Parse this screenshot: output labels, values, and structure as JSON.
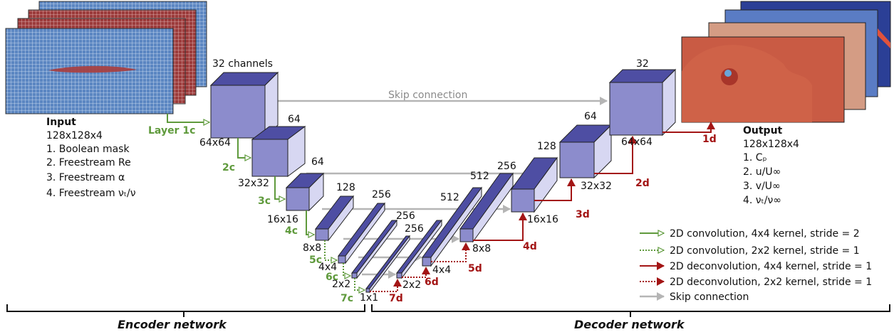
{
  "input": {
    "title": "Input",
    "size": "128x128x4",
    "items": [
      "1. Boolean mask",
      "2. Freestream Re",
      "3. Freestream α",
      "4. Freestream νₜ/ν"
    ]
  },
  "output": {
    "title": "Output",
    "size": "128x128x4",
    "items": [
      "1. Cₚ",
      "2. u/U∞",
      "3. v/U∞",
      "4. νₜ/ν∞"
    ]
  },
  "encoder": {
    "channels_label": "32 channels",
    "channels": [
      "64",
      "64",
      "128",
      "256",
      "256",
      "256"
    ],
    "sizes": [
      "64x64",
      "32x32",
      "16x16",
      "8x8",
      "4x4",
      "2x2",
      "1x1"
    ],
    "layers": [
      "Layer 1c",
      "2c",
      "3c",
      "4c",
      "5c",
      "6c",
      "7c"
    ]
  },
  "decoder": {
    "channels": [
      "512",
      "512",
      "256",
      "128",
      "64",
      "32"
    ],
    "sizes": [
      "2x2",
      "4x4",
      "8x8",
      "16x16",
      "32x32",
      "64x64"
    ],
    "layers": [
      "7d",
      "6d",
      "5d",
      "4d",
      "3d",
      "2d",
      "1d"
    ]
  },
  "skip_label": "Skip connection",
  "legend": [
    {
      "label": "2D convolution, 4x4 kernel, stride = 2",
      "color": "#5f9a3c",
      "style": "solid"
    },
    {
      "label": "2D convolution, 2x2 kernel, stride = 1",
      "color": "#5f9a3c",
      "style": "dotted"
    },
    {
      "label": "2D deconvolution, 4x4 kernel, stride = 1",
      "color": "#a31515",
      "style": "solid"
    },
    {
      "label": "2D deconvolution, 2x2 kernel, stride = 1",
      "color": "#a31515",
      "style": "dotted"
    },
    {
      "label": "Skip connection",
      "color": "#b5b5b5",
      "style": "solid"
    }
  ],
  "networks": [
    "Encoder network",
    "Decoder network"
  ],
  "colors": {
    "block_front": "#8c8ccc",
    "block_top": "#4e4ea3",
    "block_side": "#d7d7f2",
    "conv": "#5f9a3c",
    "deconv": "#a31515",
    "skip": "#b5b5b5"
  }
}
